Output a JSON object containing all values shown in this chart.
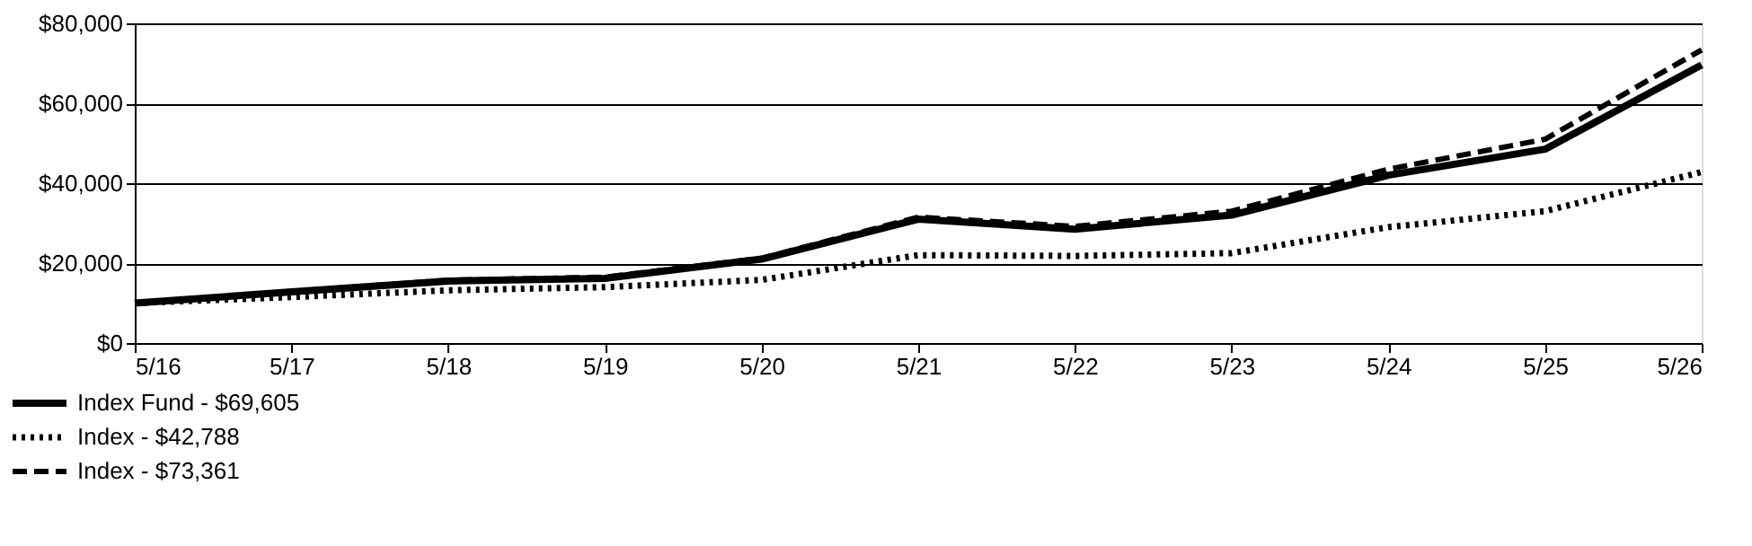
{
  "chart_data": {
    "type": "line",
    "categories": [
      "5/16",
      "5/17",
      "5/18",
      "5/19",
      "5/20",
      "5/21",
      "5/22",
      "5/23",
      "5/24",
      "5/25",
      "5/26"
    ],
    "ylim": [
      0,
      80000
    ],
    "yticks": [
      {
        "value": 0,
        "label": "$0"
      },
      {
        "value": 20000,
        "label": "$20,000"
      },
      {
        "value": 40000,
        "label": "$40,000"
      },
      {
        "value": 60000,
        "label": "$60,000"
      },
      {
        "value": 80000,
        "label": "$80,000"
      }
    ],
    "grid": "y",
    "legend": "bottom left",
    "marker": "none",
    "series": [
      {
        "name": "Index Fund - $69,605",
        "color": "#000000",
        "line_style": "solid",
        "values": [
          10000,
          12800,
          15500,
          16200,
          21000,
          31000,
          28500,
          32000,
          42000,
          48500,
          69605
        ]
      },
      {
        "name": "Index - $42,788",
        "color": "#000000",
        "line_style": "dotted",
        "values": [
          10000,
          11500,
          13200,
          14000,
          15800,
          22000,
          21800,
          22500,
          29000,
          33000,
          42788
        ]
      },
      {
        "name": "Index - $73,361",
        "color": "#000000",
        "line_style": "dashed",
        "values": [
          10000,
          12900,
          15700,
          16500,
          21200,
          31500,
          29200,
          33000,
          43500,
          51000,
          73361
        ]
      }
    ]
  }
}
